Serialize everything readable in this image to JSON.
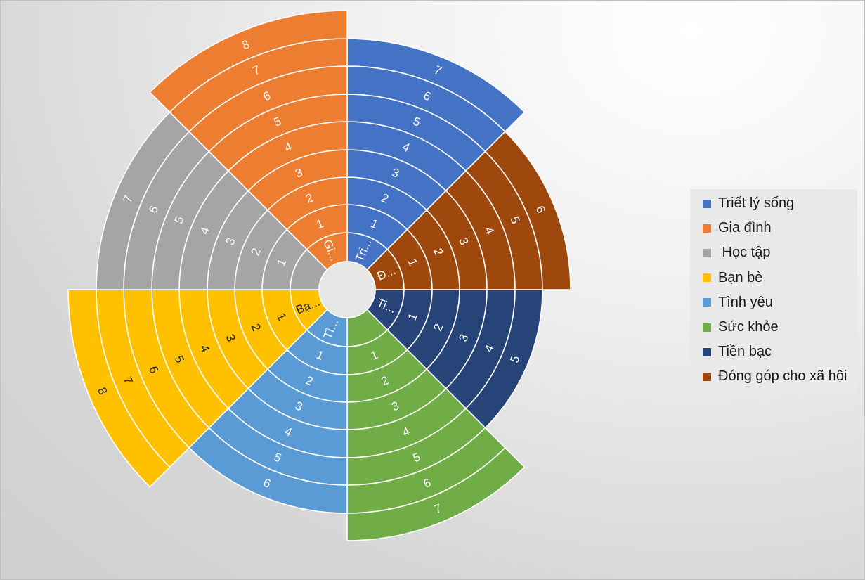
{
  "chart_data": {
    "type": "sunburst",
    "center": {
      "cx": 493,
      "cy": 411
    },
    "categories": [
      {
        "name": "Triết lý sống",
        "short": "Tri...",
        "value": 7,
        "color": "#4472C4",
        "label_color": "#ffffff"
      },
      {
        "name": "Đóng góp cho xã hội",
        "short": "Đ...",
        "value": 6,
        "color": "#9E480E",
        "label_color": "#ffffff"
      },
      {
        "name": "Tiền bạc",
        "short": "Ti...",
        "value": 5,
        "color": "#264478",
        "label_color": "#ffffff"
      },
      {
        "name": "Sức khỏe",
        "short": "",
        "value": 7,
        "color": "#70AD47",
        "label_color": "#ffffff"
      },
      {
        "name": "Tình yêu",
        "short": "Tì...",
        "value": 6,
        "color": "#5B9BD5",
        "label_color": "#ffffff"
      },
      {
        "name": "Bạn bè",
        "short": "Bạ...",
        "value": 8,
        "color": "#FFC000",
        "label_color": "#262626"
      },
      {
        "name": " Học tập",
        "short": "",
        "value": 7,
        "color": "#A5A5A5",
        "label_color": "#ffffff"
      },
      {
        "name": "Gia đình",
        "short": "Gi...",
        "value": 8,
        "color": "#ED7D31",
        "label_color": "#ffffff"
      }
    ],
    "rings": [
      1,
      2,
      3,
      4,
      5,
      6,
      7,
      8
    ],
    "legend_order": [
      "Triết lý sống",
      "Gia đình",
      " Học tập",
      "Bạn bè",
      "Tình yêu",
      "Sức khỏe",
      "Tiền bạc",
      "Đóng góp cho xã hội"
    ],
    "legend_position": "right",
    "title": ""
  }
}
